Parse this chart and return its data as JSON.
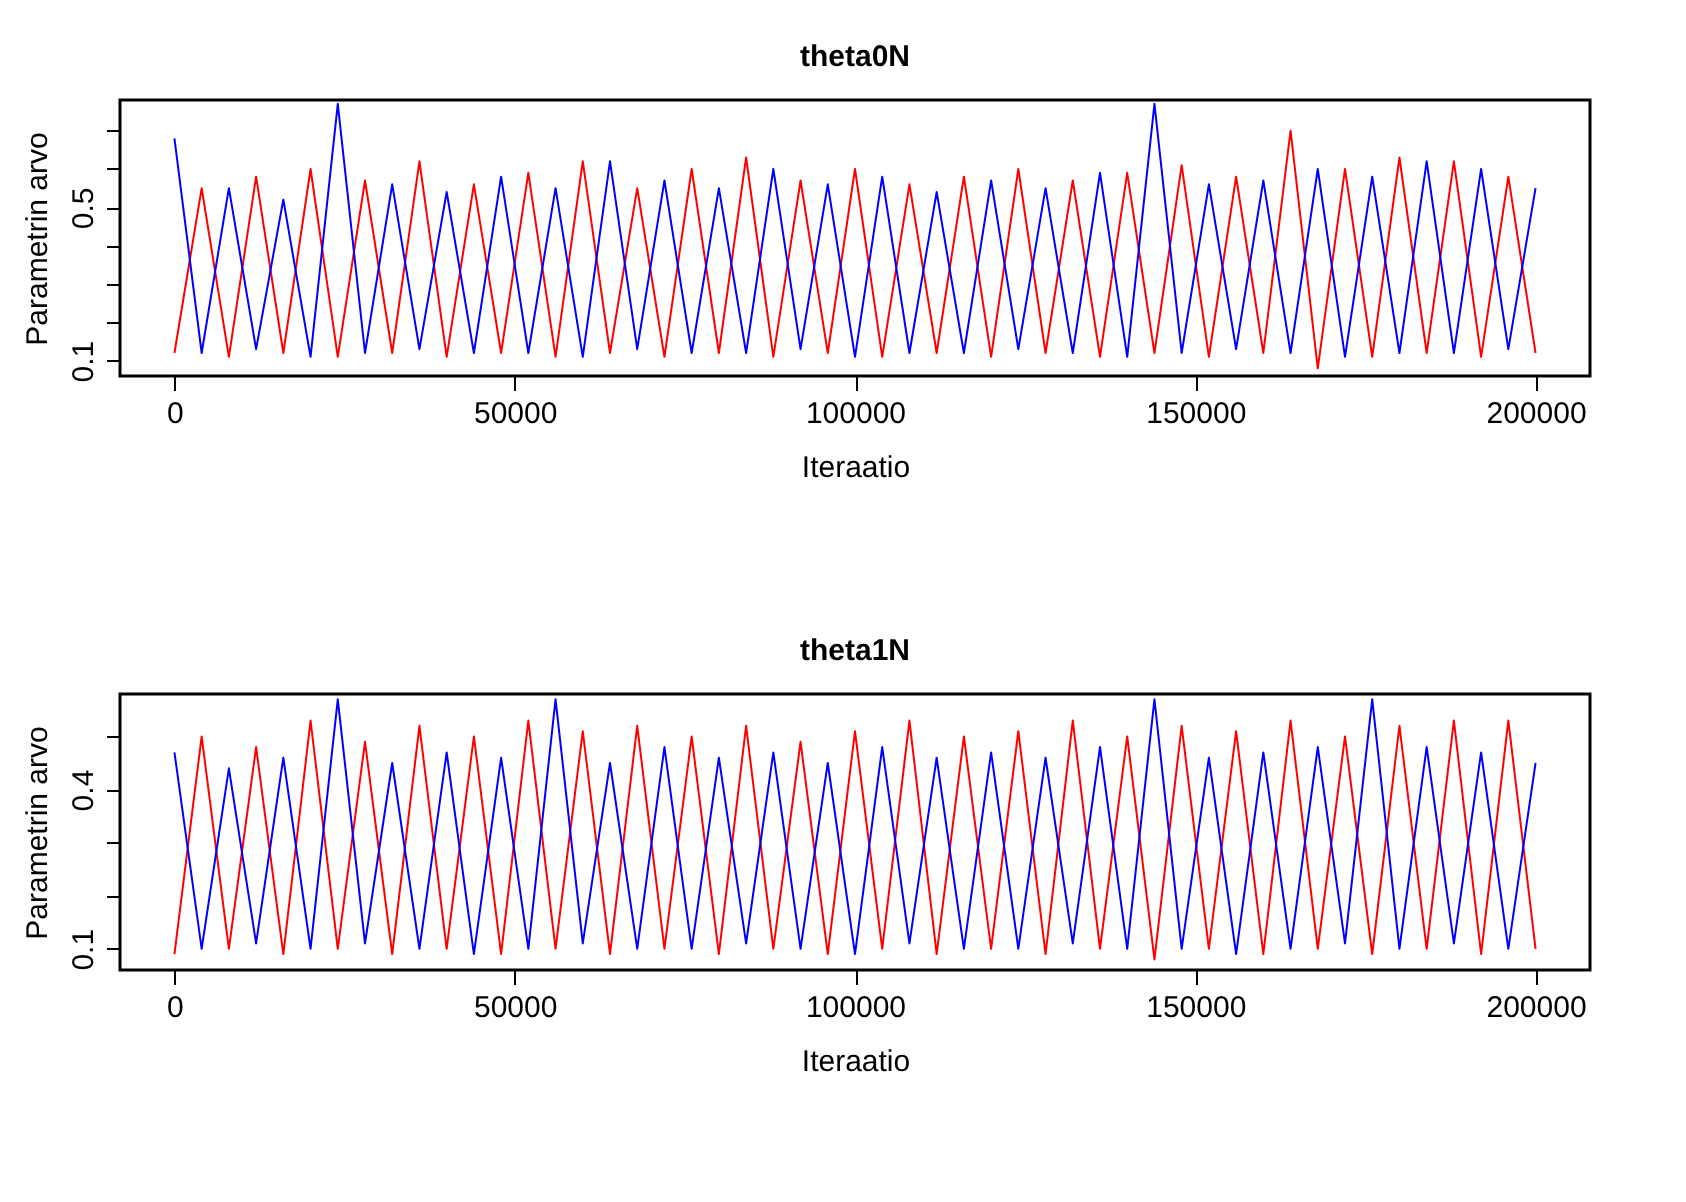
{
  "chart_data": [
    {
      "type": "line",
      "title": "theta0N",
      "xlabel": "Iteraatio",
      "ylabel": "Parametrin arvo",
      "grid": false,
      "x": [
        0,
        4000,
        8000,
        12000,
        16000,
        20000,
        24000,
        28000,
        32000,
        36000,
        40000,
        44000,
        48000,
        52000,
        56000,
        60000,
        64000,
        68000,
        72000,
        76000,
        80000,
        84000,
        88000,
        92000,
        96000,
        100000,
        104000,
        108000,
        112000,
        116000,
        120000,
        124000,
        128000,
        132000,
        136000,
        140000,
        144000,
        148000,
        152000,
        156000,
        160000,
        164000,
        168000,
        172000,
        176000,
        180000,
        184000,
        188000,
        192000,
        196000,
        200000
      ],
      "xlim": [
        -8000,
        208000
      ],
      "xticks": [
        0,
        50000,
        100000,
        150000,
        200000
      ],
      "ylim": [
        0.06,
        0.78
      ],
      "yticks": [
        0.1,
        {
          "value": 0.2,
          "label": null
        },
        {
          "value": 0.3,
          "label": null
        },
        {
          "value": 0.4,
          "label": null
        },
        0.5,
        {
          "value": 0.6,
          "label": null
        },
        {
          "value": 0.7,
          "label": null
        }
      ],
      "series": [
        {
          "color": "#ff0000",
          "values": [
            0.12,
            0.55,
            0.11,
            0.58,
            0.12,
            0.6,
            0.11,
            0.57,
            0.12,
            0.62,
            0.11,
            0.56,
            0.12,
            0.59,
            0.11,
            0.62,
            0.12,
            0.55,
            0.11,
            0.6,
            0.12,
            0.63,
            0.11,
            0.57,
            0.12,
            0.6,
            0.11,
            0.56,
            0.12,
            0.58,
            0.11,
            0.6,
            0.12,
            0.57,
            0.11,
            0.59,
            0.12,
            0.61,
            0.11,
            0.58,
            0.12,
            0.7,
            0.08,
            0.6,
            0.11,
            0.63,
            0.12,
            0.62,
            0.11,
            0.58,
            0.12
          ]
        },
        {
          "color": "#0000ff",
          "values": [
            0.68,
            0.12,
            0.55,
            0.13,
            0.52,
            0.11,
            0.77,
            0.12,
            0.56,
            0.13,
            0.54,
            0.12,
            0.58,
            0.12,
            0.55,
            0.11,
            0.62,
            0.13,
            0.57,
            0.12,
            0.55,
            0.12,
            0.6,
            0.13,
            0.56,
            0.11,
            0.58,
            0.12,
            0.54,
            0.12,
            0.57,
            0.13,
            0.55,
            0.12,
            0.59,
            0.11,
            0.77,
            0.12,
            0.56,
            0.13,
            0.57,
            0.12,
            0.6,
            0.11,
            0.58,
            0.12,
            0.62,
            0.12,
            0.6,
            0.13,
            0.55
          ]
        }
      ]
    },
    {
      "type": "line",
      "title": "theta1N",
      "xlabel": "Iteraatio",
      "ylabel": "Parametrin arvo",
      "grid": false,
      "x": [
        0,
        4000,
        8000,
        12000,
        16000,
        20000,
        24000,
        28000,
        32000,
        36000,
        40000,
        44000,
        48000,
        52000,
        56000,
        60000,
        64000,
        68000,
        72000,
        76000,
        80000,
        84000,
        88000,
        92000,
        96000,
        100000,
        104000,
        108000,
        112000,
        116000,
        120000,
        124000,
        128000,
        132000,
        136000,
        140000,
        144000,
        148000,
        152000,
        156000,
        160000,
        164000,
        168000,
        172000,
        176000,
        180000,
        184000,
        188000,
        192000,
        196000,
        200000
      ],
      "xlim": [
        -8000,
        208000
      ],
      "xticks": [
        0,
        50000,
        100000,
        150000,
        200000
      ],
      "ylim": [
        0.06,
        0.58
      ],
      "yticks": [
        0.1,
        {
          "value": 0.2,
          "label": null
        },
        {
          "value": 0.3,
          "label": null
        },
        0.4,
        {
          "value": 0.5,
          "label": null
        }
      ],
      "series": [
        {
          "color": "#ff0000",
          "values": [
            0.09,
            0.5,
            0.1,
            0.48,
            0.09,
            0.53,
            0.1,
            0.49,
            0.09,
            0.52,
            0.1,
            0.5,
            0.09,
            0.53,
            0.1,
            0.51,
            0.09,
            0.52,
            0.1,
            0.5,
            0.09,
            0.52,
            0.1,
            0.49,
            0.09,
            0.51,
            0.1,
            0.53,
            0.09,
            0.5,
            0.1,
            0.51,
            0.09,
            0.53,
            0.1,
            0.5,
            0.08,
            0.52,
            0.1,
            0.51,
            0.09,
            0.53,
            0.1,
            0.5,
            0.09,
            0.52,
            0.1,
            0.53,
            0.09,
            0.53,
            0.1
          ]
        },
        {
          "color": "#0000ff",
          "values": [
            0.47,
            0.1,
            0.44,
            0.11,
            0.46,
            0.1,
            0.57,
            0.11,
            0.45,
            0.1,
            0.47,
            0.09,
            0.46,
            0.1,
            0.57,
            0.11,
            0.45,
            0.1,
            0.48,
            0.1,
            0.46,
            0.11,
            0.47,
            0.1,
            0.45,
            0.09,
            0.48,
            0.11,
            0.46,
            0.1,
            0.47,
            0.1,
            0.46,
            0.11,
            0.48,
            0.1,
            0.57,
            0.1,
            0.46,
            0.09,
            0.47,
            0.1,
            0.48,
            0.11,
            0.57,
            0.1,
            0.48,
            0.11,
            0.47,
            0.1,
            0.45
          ]
        }
      ]
    }
  ]
}
